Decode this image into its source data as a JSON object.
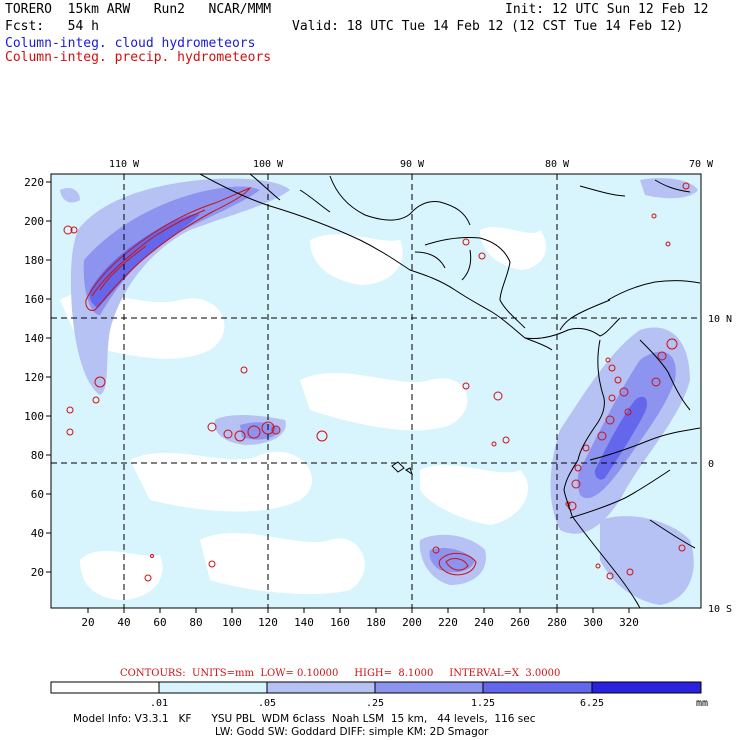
{
  "header": {
    "model": "TORERO  15km ARW   Run2   NCAR/MMM",
    "init": "Init: 12 UTC Sun 12 Feb 12",
    "fcst": "Fcst:   54 h",
    "valid": "Valid: 18 UTC Tue 14 Feb 12 (12 CST Tue 14 Feb 12)",
    "legend_cloud": "Column-integ. cloud hydrometeors",
    "legend_precip": "Column-integ. precip. hydrometeors"
  },
  "map": {
    "lon_labels": [
      "110 W",
      "100 W",
      "90 W",
      "80 W",
      "70 W"
    ],
    "lat_labels": [
      "10 N",
      "0",
      "10 S"
    ],
    "y_ticks": [
      "220",
      "200",
      "180",
      "160",
      "140",
      "120",
      "100",
      "80",
      "60",
      "40",
      "20"
    ],
    "x_ticks": [
      "20",
      "40",
      "60",
      "80",
      "100",
      "120",
      "140",
      "160",
      "180",
      "200",
      "220",
      "240",
      "260",
      "280",
      "300",
      "320"
    ]
  },
  "contours": {
    "line": "CONTOURS:  UNITS=mm  LOW= 0.10000     HIGH=  8.1000     INTERVAL=X  3.0000"
  },
  "colorbar": {
    "labels": [
      ".01",
      ".05",
      ".25",
      "1.25",
      "6.25"
    ],
    "unit": "mm",
    "colors": [
      "#ffffff",
      "#d8f4fc",
      "#b6c2f4",
      "#8c94f0",
      "#6466ec",
      "#2a22e0"
    ]
  },
  "footer": {
    "line1": "Model Info: V3.3.1   KF      YSU PBL  WDM 6class  Noah LSM  15 km,   44 levels,  116 sec",
    "line2": "LW: Godd SW: Goddard DIFF: simple KM: 2D Smagor"
  }
}
